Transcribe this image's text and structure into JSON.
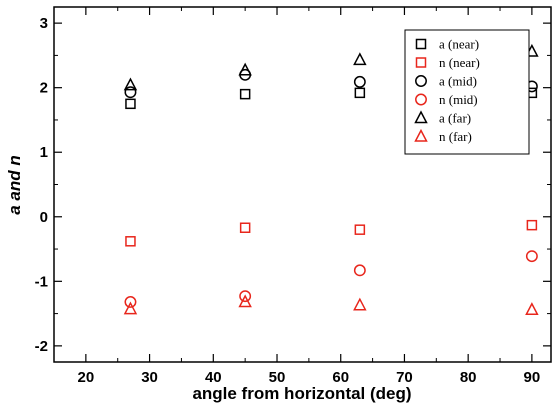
{
  "chart_data": {
    "type": "scatter",
    "xlabel": "angle from horizontal (deg)",
    "ylabel": "a and n",
    "xlim": [
      15,
      93
    ],
    "ylim": [
      -2.25,
      3.25
    ],
    "xticks": [
      20,
      30,
      40,
      50,
      60,
      70,
      80,
      90
    ],
    "yticks": [
      -2,
      -1,
      0,
      1,
      2,
      3
    ],
    "grid": false,
    "legend_position": "top-right",
    "colors": {
      "black": "#000000",
      "red": "#e8261c"
    },
    "series": [
      {
        "name": "a (near)",
        "marker": "square",
        "color": "#000000",
        "points": [
          [
            27,
            1.75
          ],
          [
            45,
            1.9
          ],
          [
            63,
            1.92
          ],
          [
            90,
            1.92
          ]
        ]
      },
      {
        "name": "n (near)",
        "marker": "square",
        "color": "#e8261c",
        "points": [
          [
            27,
            -0.38
          ],
          [
            45,
            -0.17
          ],
          [
            63,
            -0.2
          ],
          [
            90,
            -0.13
          ]
        ]
      },
      {
        "name": "a (mid)",
        "marker": "circle",
        "color": "#000000",
        "points": [
          [
            27,
            1.93
          ],
          [
            45,
            2.2
          ],
          [
            63,
            2.09
          ],
          [
            90,
            2.02
          ]
        ]
      },
      {
        "name": "n (mid)",
        "marker": "circle",
        "color": "#e8261c",
        "points": [
          [
            27,
            -1.32
          ],
          [
            45,
            -1.23
          ],
          [
            63,
            -0.83
          ],
          [
            90,
            -0.61
          ]
        ]
      },
      {
        "name": "a (far)",
        "marker": "triangle",
        "color": "#000000",
        "points": [
          [
            27,
            2.04
          ],
          [
            45,
            2.27
          ],
          [
            63,
            2.43
          ],
          [
            90,
            2.56
          ]
        ]
      },
      {
        "name": "n (far)",
        "marker": "triangle",
        "color": "#e8261c",
        "points": [
          [
            27,
            -1.43
          ],
          [
            45,
            -1.32
          ],
          [
            63,
            -1.37
          ],
          [
            90,
            -1.44
          ]
        ]
      }
    ]
  }
}
